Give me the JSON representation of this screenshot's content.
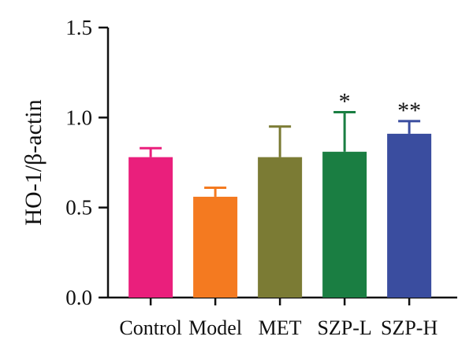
{
  "chart_data": {
    "type": "bar",
    "title": "",
    "xlabel": "",
    "ylabel": "HO-1/β-actin",
    "ylim": [
      0,
      1.5
    ],
    "yticks": [
      "0.0",
      "0.5",
      "1.0",
      "1.5"
    ],
    "grid": false,
    "categories": [
      "Control",
      "Model",
      "MET",
      "SZP-L",
      "SZP-H"
    ],
    "values": [
      0.78,
      0.56,
      0.78,
      0.81,
      0.91
    ],
    "error_upper": [
      0.05,
      0.05,
      0.17,
      0.22,
      0.07
    ],
    "annotations": [
      "",
      "",
      "",
      "*",
      "**"
    ],
    "colors": [
      "#ea1f7c",
      "#f47a20",
      "#7b7b34",
      "#1a7e42",
      "#3a4d9f"
    ]
  }
}
